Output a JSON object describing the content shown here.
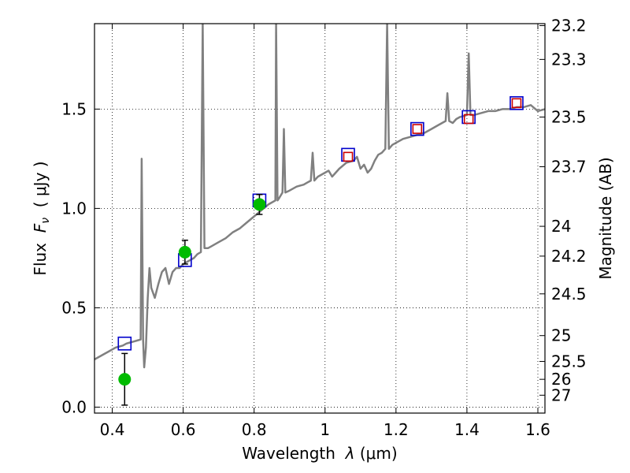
{
  "chart_data": {
    "type": "line",
    "x_label": "Wavelength",
    "x_label_symbol": "λ",
    "x_label_unit": "(μm)",
    "y_label": "Flux",
    "y_label_symbol": "F",
    "y_label_subscript": "ν",
    "y_label_unit": "( μJy )",
    "y2_label": "Magnitude (AB)",
    "xlim": [
      0.35,
      1.62
    ],
    "ylim": [
      -0.03,
      1.93
    ],
    "x_ticks": [
      {
        "value": 0.4,
        "label": "0.4"
      },
      {
        "value": 0.6,
        "label": "0.6"
      },
      {
        "value": 0.8,
        "label": "0.8"
      },
      {
        "value": 1.0,
        "label": "1"
      },
      {
        "value": 1.2,
        "label": "1.2"
      },
      {
        "value": 1.4,
        "label": "1.4"
      },
      {
        "value": 1.6,
        "label": "1.6"
      }
    ],
    "y_ticks": [
      {
        "value": 0.0,
        "label": "0.0"
      },
      {
        "value": 0.5,
        "label": "0.5"
      },
      {
        "value": 1.0,
        "label": "1.0"
      },
      {
        "value": 1.5,
        "label": "1.5"
      }
    ],
    "y2_ticks": [
      {
        "flux": 1.92,
        "label": "23.2"
      },
      {
        "flux": 1.75,
        "label": "23.3"
      },
      {
        "flux": 1.46,
        "label": "23.5"
      },
      {
        "flux": 1.21,
        "label": "23.7"
      },
      {
        "flux": 0.91,
        "label": "24"
      },
      {
        "flux": 0.76,
        "label": "24.2"
      },
      {
        "flux": 0.57,
        "label": "24.5"
      },
      {
        "flux": 0.36,
        "label": "25"
      },
      {
        "flux": 0.23,
        "label": "25.5"
      },
      {
        "flux": 0.14,
        "label": "26"
      },
      {
        "flux": 0.06,
        "label": "27"
      }
    ],
    "grid": true,
    "colors": {
      "model": "#808080",
      "model_band": "#3333cc",
      "model_phot": "#0000cc",
      "observed_phot": "#cc0000",
      "detection": "#00bb00",
      "errorbar": "#000000"
    },
    "series": [
      {
        "name": "model_spectrum",
        "kind": "line",
        "points": [
          [
            0.35,
            0.24
          ],
          [
            0.36,
            0.25
          ],
          [
            0.37,
            0.26
          ],
          [
            0.38,
            0.27
          ],
          [
            0.39,
            0.28
          ],
          [
            0.4,
            0.29
          ],
          [
            0.41,
            0.3
          ],
          [
            0.42,
            0.305
          ],
          [
            0.43,
            0.31
          ],
          [
            0.44,
            0.32
          ],
          [
            0.45,
            0.325
          ],
          [
            0.46,
            0.33
          ],
          [
            0.47,
            0.335
          ],
          [
            0.48,
            0.34
          ],
          [
            0.483,
            1.25
          ],
          [
            0.487,
            0.34
          ],
          [
            0.49,
            0.2
          ],
          [
            0.495,
            0.3
          ],
          [
            0.5,
            0.55
          ],
          [
            0.505,
            0.7
          ],
          [
            0.51,
            0.6
          ],
          [
            0.52,
            0.55
          ],
          [
            0.53,
            0.62
          ],
          [
            0.54,
            0.68
          ],
          [
            0.55,
            0.7
          ],
          [
            0.56,
            0.62
          ],
          [
            0.57,
            0.68
          ],
          [
            0.58,
            0.7
          ],
          [
            0.59,
            0.7
          ],
          [
            0.6,
            0.72
          ],
          [
            0.61,
            0.73
          ],
          [
            0.62,
            0.74
          ],
          [
            0.63,
            0.75
          ],
          [
            0.64,
            0.77
          ],
          [
            0.65,
            0.78
          ],
          [
            0.655,
            1.93
          ],
          [
            0.66,
            0.8
          ],
          [
            0.67,
            0.8
          ],
          [
            0.68,
            0.81
          ],
          [
            0.7,
            0.83
          ],
          [
            0.72,
            0.85
          ],
          [
            0.74,
            0.88
          ],
          [
            0.76,
            0.9
          ],
          [
            0.78,
            0.93
          ],
          [
            0.8,
            0.96
          ],
          [
            0.82,
            0.99
          ],
          [
            0.84,
            1.02
          ],
          [
            0.86,
            1.04
          ],
          [
            0.862,
            1.93
          ],
          [
            0.866,
            1.04
          ],
          [
            0.87,
            1.05
          ],
          [
            0.88,
            1.08
          ],
          [
            0.884,
            1.4
          ],
          [
            0.888,
            1.08
          ],
          [
            0.9,
            1.09
          ],
          [
            0.92,
            1.11
          ],
          [
            0.94,
            1.12
          ],
          [
            0.95,
            1.13
          ],
          [
            0.96,
            1.14
          ],
          [
            0.965,
            1.28
          ],
          [
            0.97,
            1.14
          ],
          [
            0.98,
            1.16
          ],
          [
            1.0,
            1.18
          ],
          [
            1.01,
            1.19
          ],
          [
            1.02,
            1.16
          ],
          [
            1.03,
            1.18
          ],
          [
            1.04,
            1.2
          ],
          [
            1.06,
            1.23
          ],
          [
            1.08,
            1.24
          ],
          [
            1.09,
            1.26
          ],
          [
            1.1,
            1.2
          ],
          [
            1.11,
            1.22
          ],
          [
            1.12,
            1.18
          ],
          [
            1.13,
            1.2
          ],
          [
            1.14,
            1.24
          ],
          [
            1.15,
            1.27
          ],
          [
            1.16,
            1.28
          ],
          [
            1.17,
            1.3
          ],
          [
            1.175,
            1.93
          ],
          [
            1.18,
            1.3
          ],
          [
            1.19,
            1.32
          ],
          [
            1.2,
            1.33
          ],
          [
            1.22,
            1.35
          ],
          [
            1.24,
            1.36
          ],
          [
            1.26,
            1.37
          ],
          [
            1.28,
            1.38
          ],
          [
            1.3,
            1.4
          ],
          [
            1.32,
            1.42
          ],
          [
            1.34,
            1.44
          ],
          [
            1.345,
            1.58
          ],
          [
            1.35,
            1.44
          ],
          [
            1.36,
            1.43
          ],
          [
            1.37,
            1.45
          ],
          [
            1.38,
            1.46
          ],
          [
            1.4,
            1.47
          ],
          [
            1.405,
            1.78
          ],
          [
            1.41,
            1.47
          ],
          [
            1.42,
            1.47
          ],
          [
            1.44,
            1.48
          ],
          [
            1.46,
            1.49
          ],
          [
            1.48,
            1.49
          ],
          [
            1.5,
            1.5
          ],
          [
            1.52,
            1.5
          ],
          [
            1.54,
            1.51
          ],
          [
            1.56,
            1.51
          ],
          [
            1.58,
            1.52
          ],
          [
            1.6,
            1.49
          ],
          [
            1.62,
            1.5
          ]
        ]
      },
      {
        "name": "model_photometry",
        "kind": "square",
        "color": "#0000cc",
        "points": [
          [
            0.435,
            0.32
          ],
          [
            0.605,
            0.74
          ],
          [
            0.815,
            1.04
          ],
          [
            1.065,
            1.27
          ],
          [
            1.26,
            1.4
          ],
          [
            1.405,
            1.46
          ],
          [
            1.54,
            1.53
          ]
        ]
      },
      {
        "name": "observed_photometry_nir",
        "kind": "square",
        "color": "#cc0000",
        "points": [
          [
            1.065,
            1.26
          ],
          [
            1.26,
            1.4
          ],
          [
            1.405,
            1.45
          ],
          [
            1.54,
            1.53
          ]
        ]
      },
      {
        "name": "observed_photometry_optical",
        "kind": "circle",
        "color": "#00bb00",
        "points": [
          {
            "x": 0.435,
            "y": 0.14,
            "err_low": 0.13,
            "err_high": 0.13
          },
          {
            "x": 0.605,
            "y": 0.78,
            "err_low": 0.06,
            "err_high": 0.06
          },
          {
            "x": 0.815,
            "y": 1.02,
            "err_low": 0.05,
            "err_high": 0.05
          }
        ]
      }
    ]
  }
}
